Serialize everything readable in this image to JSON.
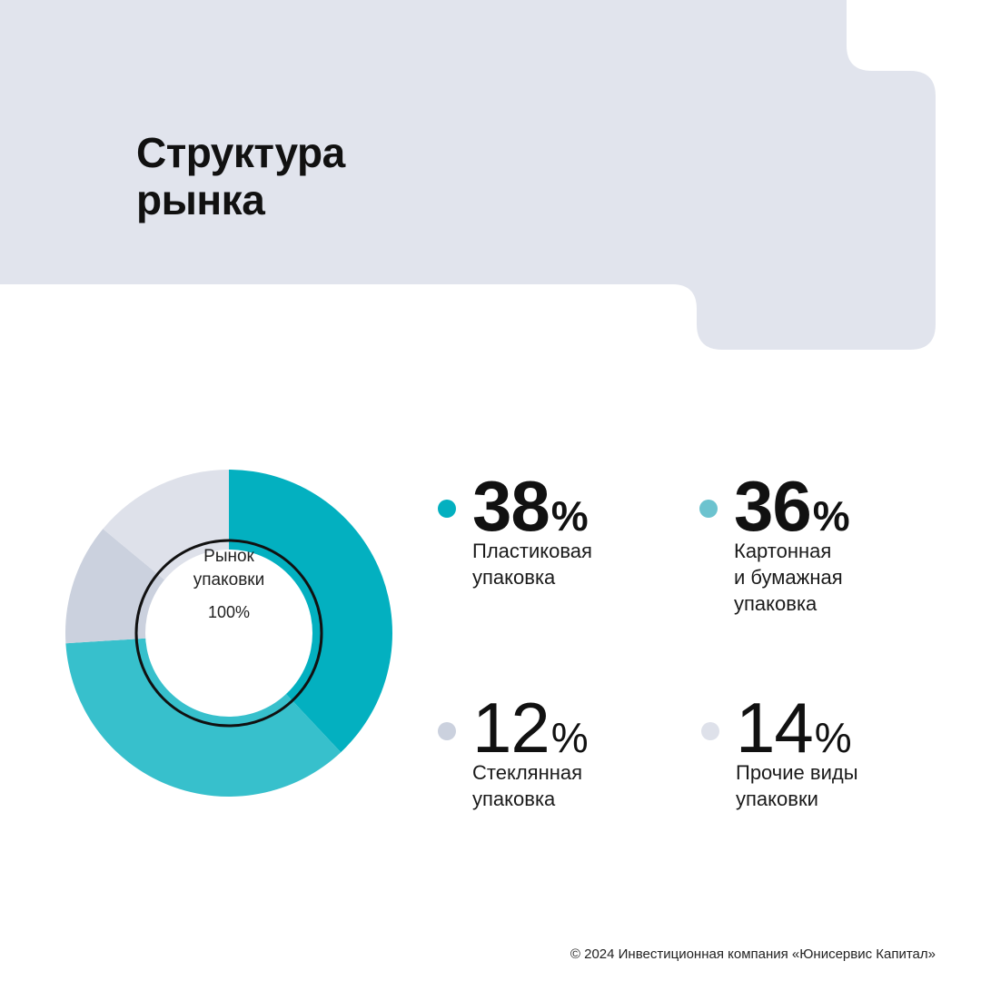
{
  "header": {
    "title_lines": [
      "Структура",
      "рынка"
    ],
    "background_color": "#e1e4ed"
  },
  "chart_data": {
    "type": "pie",
    "center_label_lines": [
      "Рынок",
      "упаковки"
    ],
    "center_value": "100%",
    "series": [
      {
        "label_lines": [
          "Пластиковая",
          "упаковка"
        ],
        "value": 38,
        "unit": "%",
        "color": "#03b0c0"
      },
      {
        "label_lines": [
          "Картонная",
          "и бумажная",
          "упаковка"
        ],
        "value": 36,
        "unit": "%",
        "color": "#37c0cc"
      },
      {
        "label_lines": [
          "Стеклянная",
          "упаковка"
        ],
        "value": 12,
        "unit": "%",
        "color": "#cbd1de"
      },
      {
        "label_lines": [
          "Прочие виды",
          "упаковки"
        ],
        "value": 14,
        "unit": "%",
        "color": "#dee1ea"
      }
    ],
    "legend_dot_colors": [
      "#03b0c0",
      "#6cc3cf",
      "#cbd1de",
      "#dee1ea"
    ]
  },
  "footer": {
    "copyright": "© 2024 Инвестиционная компания «Юнисервис Капитал»"
  }
}
